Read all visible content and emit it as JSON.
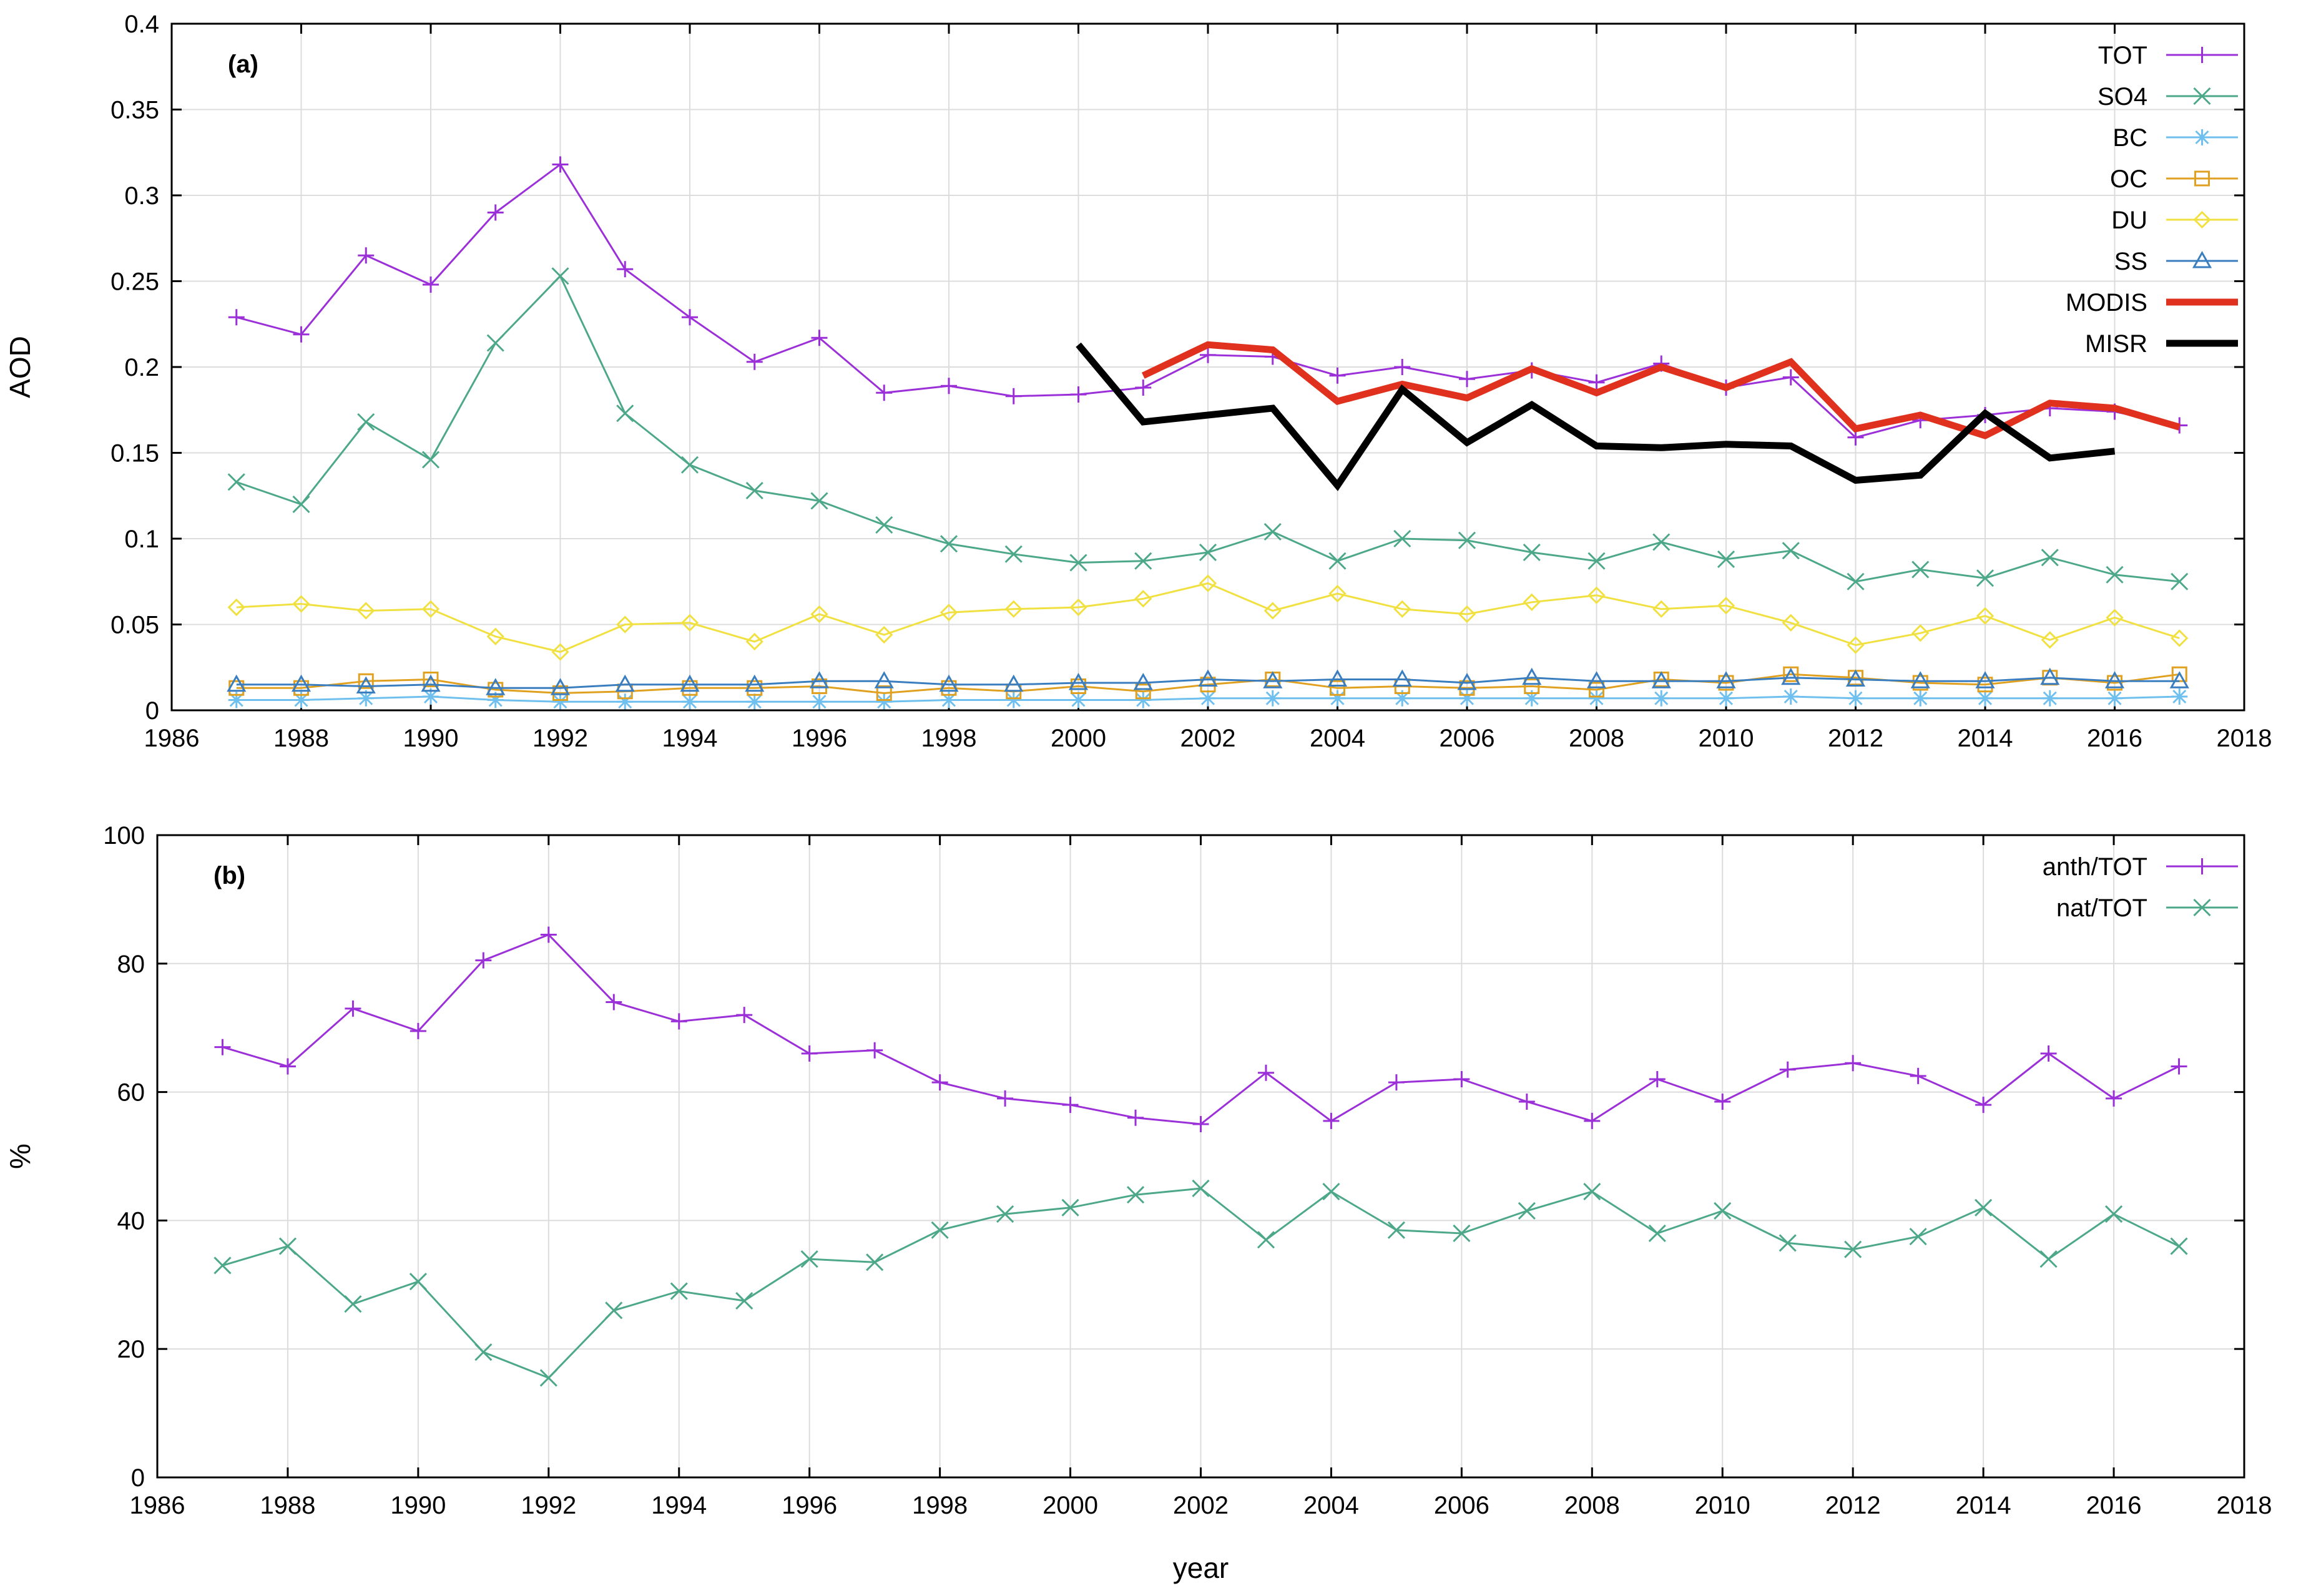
{
  "chart_data": [
    {
      "type": "line",
      "panel_label": "(a)",
      "title": "",
      "xlabel": "",
      "ylabel": "AOD",
      "xlim": [
        1986,
        2018
      ],
      "ylim": [
        0,
        0.4
      ],
      "xticks": [
        1986,
        1988,
        1990,
        1992,
        1994,
        1996,
        1998,
        2000,
        2002,
        2004,
        2006,
        2008,
        2010,
        2012,
        2014,
        2016,
        2018
      ],
      "xtick_labels": [
        "1986",
        "1988",
        "1990",
        "1992",
        "1994",
        "1996",
        "1998",
        "2000",
        "2002",
        "2004",
        "2006",
        "2008",
        "2010",
        "2012",
        "2014",
        "2016",
        "2018"
      ],
      "yticks": [
        0,
        0.05,
        0.1,
        0.15,
        0.2,
        0.25,
        0.3,
        0.35,
        0.4
      ],
      "ytick_labels": [
        "0",
        "0.05",
        "0.1",
        "0.15",
        "0.2",
        "0.25",
        "0.3",
        "0.35",
        "0.4"
      ],
      "grid": true,
      "legend_position": "top-right",
      "series": [
        {
          "name": "TOT",
          "color": "#9b30d9",
          "marker": "plus",
          "width": 3,
          "x": [
            1987,
            1988,
            1989,
            1990,
            1991,
            1992,
            1993,
            1994,
            1995,
            1996,
            1997,
            1998,
            1999,
            2000,
            2001,
            2002,
            2003,
            2004,
            2005,
            2006,
            2007,
            2008,
            2009,
            2010,
            2011,
            2012,
            2013,
            2014,
            2015,
            2016,
            2017
          ],
          "values": [
            0.229,
            0.219,
            0.265,
            0.248,
            0.29,
            0.318,
            0.257,
            0.229,
            0.203,
            0.217,
            0.185,
            0.189,
            0.183,
            0.184,
            0.188,
            0.207,
            0.206,
            0.195,
            0.2,
            0.193,
            0.198,
            0.191,
            0.202,
            0.188,
            0.194,
            0.159,
            0.169,
            0.172,
            0.176,
            0.174,
            0.166
          ]
        },
        {
          "name": "SO4",
          "color": "#4da88a",
          "marker": "cross",
          "width": 3,
          "x": [
            1987,
            1988,
            1989,
            1990,
            1991,
            1992,
            1993,
            1994,
            1995,
            1996,
            1997,
            1998,
            1999,
            2000,
            2001,
            2002,
            2003,
            2004,
            2005,
            2006,
            2007,
            2008,
            2009,
            2010,
            2011,
            2012,
            2013,
            2014,
            2015,
            2016,
            2017
          ],
          "values": [
            0.133,
            0.12,
            0.168,
            0.146,
            0.214,
            0.253,
            0.173,
            0.143,
            0.128,
            0.122,
            0.108,
            0.097,
            0.091,
            0.086,
            0.087,
            0.092,
            0.104,
            0.087,
            0.1,
            0.099,
            0.092,
            0.087,
            0.098,
            0.088,
            0.093,
            0.075,
            0.082,
            0.077,
            0.089,
            0.079,
            0.075
          ]
        },
        {
          "name": "BC",
          "color": "#6fc0ee",
          "marker": "star",
          "width": 3,
          "x": [
            1987,
            1988,
            1989,
            1990,
            1991,
            1992,
            1993,
            1994,
            1995,
            1996,
            1997,
            1998,
            1999,
            2000,
            2001,
            2002,
            2003,
            2004,
            2005,
            2006,
            2007,
            2008,
            2009,
            2010,
            2011,
            2012,
            2013,
            2014,
            2015,
            2016,
            2017
          ],
          "values": [
            0.006,
            0.006,
            0.007,
            0.008,
            0.006,
            0.005,
            0.005,
            0.005,
            0.005,
            0.005,
            0.005,
            0.006,
            0.006,
            0.006,
            0.006,
            0.007,
            0.007,
            0.007,
            0.007,
            0.007,
            0.007,
            0.007,
            0.007,
            0.007,
            0.008,
            0.007,
            0.007,
            0.007,
            0.007,
            0.007,
            0.008
          ]
        },
        {
          "name": "OC",
          "color": "#e0a020",
          "marker": "square",
          "width": 3,
          "x": [
            1987,
            1988,
            1989,
            1990,
            1991,
            1992,
            1993,
            1994,
            1995,
            1996,
            1997,
            1998,
            1999,
            2000,
            2001,
            2002,
            2003,
            2004,
            2005,
            2006,
            2007,
            2008,
            2009,
            2010,
            2011,
            2012,
            2013,
            2014,
            2015,
            2016,
            2017
          ],
          "values": [
            0.013,
            0.013,
            0.017,
            0.018,
            0.012,
            0.01,
            0.011,
            0.013,
            0.013,
            0.014,
            0.01,
            0.013,
            0.011,
            0.014,
            0.011,
            0.015,
            0.018,
            0.013,
            0.014,
            0.013,
            0.014,
            0.012,
            0.018,
            0.016,
            0.021,
            0.019,
            0.016,
            0.015,
            0.019,
            0.016,
            0.021
          ]
        },
        {
          "name": "DU",
          "color": "#f0e040",
          "marker": "diamond",
          "width": 3,
          "x": [
            1987,
            1988,
            1989,
            1990,
            1991,
            1992,
            1993,
            1994,
            1995,
            1996,
            1997,
            1998,
            1999,
            2000,
            2001,
            2002,
            2003,
            2004,
            2005,
            2006,
            2007,
            2008,
            2009,
            2010,
            2011,
            2012,
            2013,
            2014,
            2015,
            2016,
            2017
          ],
          "values": [
            0.06,
            0.062,
            0.058,
            0.059,
            0.043,
            0.034,
            0.05,
            0.051,
            0.04,
            0.056,
            0.044,
            0.057,
            0.059,
            0.06,
            0.065,
            0.074,
            0.058,
            0.068,
            0.059,
            0.056,
            0.063,
            0.067,
            0.059,
            0.061,
            0.051,
            0.038,
            0.045,
            0.055,
            0.041,
            0.054,
            0.042
          ]
        },
        {
          "name": "SS",
          "color": "#3a7ec0",
          "marker": "triangle",
          "width": 3,
          "x": [
            1987,
            1988,
            1989,
            1990,
            1991,
            1992,
            1993,
            1994,
            1995,
            1996,
            1997,
            1998,
            1999,
            2000,
            2001,
            2002,
            2003,
            2004,
            2005,
            2006,
            2007,
            2008,
            2009,
            2010,
            2011,
            2012,
            2013,
            2014,
            2015,
            2016,
            2017
          ],
          "values": [
            0.015,
            0.015,
            0.014,
            0.015,
            0.013,
            0.013,
            0.015,
            0.015,
            0.015,
            0.017,
            0.017,
            0.015,
            0.015,
            0.016,
            0.016,
            0.018,
            0.017,
            0.018,
            0.018,
            0.016,
            0.019,
            0.017,
            0.017,
            0.017,
            0.019,
            0.018,
            0.017,
            0.017,
            0.019,
            0.017,
            0.017
          ]
        },
        {
          "name": "MODIS",
          "color": "#e0301e",
          "marker": "none",
          "width": 11,
          "x": [
            2001,
            2002,
            2003,
            2004,
            2005,
            2006,
            2007,
            2008,
            2009,
            2010,
            2011,
            2012,
            2013,
            2014,
            2015,
            2016,
            2017
          ],
          "values": [
            0.195,
            0.213,
            0.21,
            0.18,
            0.19,
            0.182,
            0.199,
            0.185,
            0.2,
            0.188,
            0.203,
            0.164,
            0.172,
            0.16,
            0.179,
            0.176,
            0.165
          ]
        },
        {
          "name": "MISR",
          "color": "#000000",
          "marker": "none",
          "width": 11,
          "x": [
            2000,
            2001,
            2002,
            2003,
            2004,
            2005,
            2006,
            2007,
            2008,
            2009,
            2010,
            2011,
            2012,
            2013,
            2014,
            2015,
            2016
          ],
          "values": [
            0.213,
            0.168,
            0.172,
            0.176,
            0.131,
            0.187,
            0.156,
            0.178,
            0.154,
            0.153,
            0.155,
            0.154,
            0.134,
            0.137,
            0.173,
            0.147,
            0.151
          ]
        }
      ]
    },
    {
      "type": "line",
      "panel_label": "(b)",
      "title": "",
      "xlabel": "year",
      "ylabel": "%",
      "xlim": [
        1986,
        2018
      ],
      "ylim": [
        0,
        100
      ],
      "xticks": [
        1986,
        1988,
        1990,
        1992,
        1994,
        1996,
        1998,
        2000,
        2002,
        2004,
        2006,
        2008,
        2010,
        2012,
        2014,
        2016,
        2018
      ],
      "xtick_labels": [
        "1986",
        "1988",
        "1990",
        "1992",
        "1994",
        "1996",
        "1998",
        "2000",
        "2002",
        "2004",
        "2006",
        "2008",
        "2010",
        "2012",
        "2014",
        "2016",
        "2018"
      ],
      "yticks": [
        0,
        20,
        40,
        60,
        80,
        100
      ],
      "ytick_labels": [
        "0",
        "20",
        "40",
        "60",
        "80",
        "100"
      ],
      "grid": true,
      "legend_position": "top-right",
      "series": [
        {
          "name": "anth/TOT",
          "color": "#9b30d9",
          "marker": "plus",
          "width": 3,
          "x": [
            1987,
            1988,
            1989,
            1990,
            1991,
            1992,
            1993,
            1994,
            1995,
            1996,
            1997,
            1998,
            1999,
            2000,
            2001,
            2002,
            2003,
            2004,
            2005,
            2006,
            2007,
            2008,
            2009,
            2010,
            2011,
            2012,
            2013,
            2014,
            2015,
            2016,
            2017
          ],
          "values": [
            67,
            64,
            73,
            69.5,
            80.5,
            84.5,
            74,
            71,
            72,
            66,
            66.5,
            61.5,
            59,
            58,
            56,
            55,
            63,
            55.5,
            61.5,
            62,
            58.5,
            55.5,
            62,
            58.5,
            63.5,
            64.5,
            62.5,
            58,
            66,
            59,
            64
          ]
        },
        {
          "name": "nat/TOT",
          "color": "#4da88a",
          "marker": "cross",
          "width": 3,
          "x": [
            1987,
            1988,
            1989,
            1990,
            1991,
            1992,
            1993,
            1994,
            1995,
            1996,
            1997,
            1998,
            1999,
            2000,
            2001,
            2002,
            2003,
            2004,
            2005,
            2006,
            2007,
            2008,
            2009,
            2010,
            2011,
            2012,
            2013,
            2014,
            2015,
            2016,
            2017
          ],
          "values": [
            33,
            36,
            27,
            30.5,
            19.5,
            15.5,
            26,
            29,
            27.5,
            34,
            33.5,
            38.5,
            41,
            42,
            44,
            45,
            37,
            44.5,
            38.5,
            38,
            41.5,
            44.5,
            38,
            41.5,
            36.5,
            35.5,
            37.5,
            42,
            34,
            41,
            36
          ]
        }
      ]
    }
  ]
}
